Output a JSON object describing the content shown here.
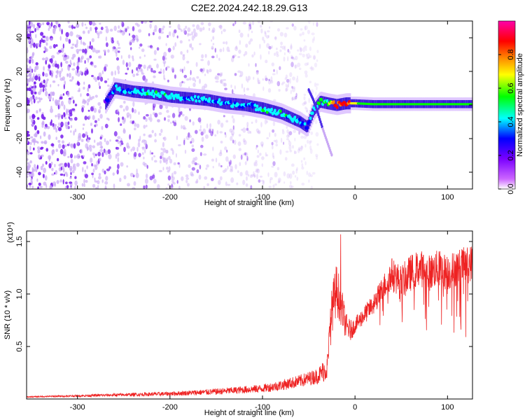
{
  "title": "C2E2.2024.242.18.29.G13",
  "chart_data": [
    {
      "type": "heatmap",
      "xlabel": "Height of straight line (km)",
      "ylabel": "Frequency (Hz)",
      "xlim": [
        -355,
        127
      ],
      "ylim": [
        -50,
        50
      ],
      "xticks": [
        -300,
        -200,
        -100,
        0,
        100
      ],
      "yticks": [
        -40,
        -20,
        0,
        20,
        40
      ],
      "colorbar": {
        "label": "Normalized spectral amplitude",
        "range": [
          0,
          1
        ],
        "ticks": [
          0.0,
          0.2,
          0.4,
          0.6,
          0.8
        ],
        "tick_labels": [
          "0.0",
          "0.2",
          "0.4",
          "0.6",
          "0.8"
        ],
        "colormap": [
          "#ffffff",
          "#cc66ff",
          "#7a00ff",
          "#0000ff",
          "#00ffff",
          "#00ff00",
          "#ffff00",
          "#ff8800",
          "#ff0000",
          "#ff00aa"
        ]
      },
      "ridge": {
        "x": [
          -270,
          -260,
          -240,
          -220,
          -200,
          -180,
          -160,
          -140,
          -120,
          -100,
          -80,
          -60,
          -52,
          -45,
          -38,
          -30,
          -20,
          -10,
          0,
          20,
          60,
          100,
          127
        ],
        "frequency": [
          1,
          10,
          8,
          7,
          5,
          4,
          3,
          1,
          0,
          -2,
          -5,
          -10,
          -13,
          -3,
          2,
          1,
          0,
          1,
          1,
          0.5,
          0.5,
          0.5,
          0.5
        ],
        "amplitude": [
          0.3,
          0.4,
          0.45,
          0.5,
          0.5,
          0.45,
          0.45,
          0.45,
          0.4,
          0.5,
          0.5,
          0.45,
          0.35,
          0.5,
          0.55,
          0.6,
          0.9,
          0.9,
          0.7,
          0.55,
          0.55,
          0.55,
          0.55
        ]
      },
      "secondary_branch": {
        "x": [
          -50,
          -45,
          -40,
          -35,
          -30,
          -25
        ],
        "frequency": [
          9,
          3,
          -5,
          -14,
          -22,
          -30
        ]
      },
      "noise_region": {
        "x_range": [
          -355,
          -100
        ]
      }
    },
    {
      "type": "line",
      "xlabel": "Height of straight line (km)",
      "ylabel": "SNR (10 * v/v)",
      "y_scale_label": "(x10⁴)",
      "xlim": [
        -355,
        127
      ],
      "ylim": [
        0,
        1.6
      ],
      "xticks": [
        -300,
        -200,
        -100,
        0,
        100
      ],
      "yticks": [
        0.5,
        1.0,
        1.5
      ],
      "ytick_labels": [
        "0.5",
        "1.0",
        "1.5"
      ],
      "color": "#ee2222",
      "series": [
        {
          "x": [
            -355,
            -300,
            -250,
            -200,
            -150,
            -100,
            -80,
            -60,
            -40,
            -30,
            -25,
            -20,
            -15,
            -10,
            -5,
            0,
            10,
            20,
            30,
            40,
            50,
            60,
            70,
            80,
            90,
            100,
            110,
            127
          ],
          "values": [
            0.02,
            0.03,
            0.04,
            0.05,
            0.07,
            0.1,
            0.13,
            0.17,
            0.22,
            0.3,
            0.85,
            1.05,
            0.9,
            0.7,
            0.65,
            0.7,
            0.8,
            0.9,
            1.05,
            1.2,
            1.1,
            1.2,
            1.25,
            1.2,
            1.25,
            1.2,
            1.25,
            1.3
          ],
          "spread": [
            0.01,
            0.02,
            0.03,
            0.04,
            0.06,
            0.08,
            0.1,
            0.12,
            0.15,
            0.25,
            0.45,
            0.5,
            0.4,
            0.25,
            0.2,
            0.15,
            0.18,
            0.2,
            0.25,
            0.3,
            0.35,
            0.35,
            0.35,
            0.35,
            0.35,
            0.35,
            0.35,
            0.35
          ]
        }
      ]
    }
  ]
}
